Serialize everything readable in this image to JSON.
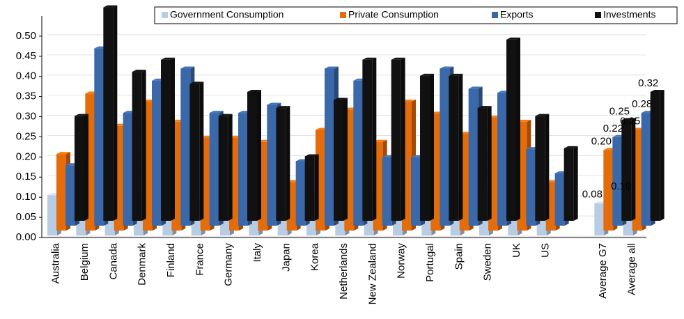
{
  "chart_data": {
    "type": "bar3d",
    "categories": [
      "Australia",
      "Belgium",
      "Canada",
      "Denmark",
      "Finland",
      "France",
      "Germany",
      "Italy",
      "Japan",
      "Korea",
      "Netherlands",
      "New Zealand",
      "Norway",
      "Portugal",
      "Spain",
      "Sweden",
      "UK",
      "US",
      null,
      "Average G7",
      "Average all"
    ],
    "series": [
      {
        "name": "Government Consumption",
        "color": "#b8cce4",
        "values": [
          0.1,
          0.12,
          0.1,
          0.1,
          0.12,
          0.09,
          0.09,
          0.07,
          0.06,
          0.1,
          0.11,
          0.1,
          0.11,
          0.09,
          0.11,
          0.11,
          0.12,
          0.06,
          null,
          0.08,
          0.1
        ],
        "value_labels": [
          null,
          null,
          null,
          null,
          null,
          null,
          null,
          null,
          null,
          null,
          null,
          null,
          null,
          null,
          null,
          null,
          null,
          null,
          null,
          "0.08",
          "0.10"
        ]
      },
      {
        "name": "Private Consumption",
        "color": "#e46c0a",
        "values": [
          0.19,
          0.34,
          0.26,
          0.32,
          0.27,
          0.23,
          0.23,
          0.22,
          0.12,
          0.25,
          0.3,
          0.22,
          0.32,
          0.29,
          0.24,
          0.28,
          0.27,
          0.12,
          null,
          0.2,
          0.25
        ],
        "value_labels": [
          null,
          null,
          null,
          null,
          null,
          null,
          null,
          null,
          null,
          null,
          null,
          null,
          null,
          null,
          null,
          null,
          null,
          null,
          null,
          "0.20",
          "0.25"
        ]
      },
      {
        "name": "Exports",
        "color": "#3a68a8",
        "values": [
          0.15,
          0.44,
          0.28,
          0.36,
          0.39,
          0.28,
          0.28,
          0.3,
          0.16,
          0.39,
          0.36,
          0.17,
          0.17,
          0.39,
          0.34,
          0.33,
          0.19,
          0.13,
          null,
          0.22,
          0.28
        ],
        "value_labels": [
          null,
          null,
          null,
          null,
          null,
          null,
          null,
          null,
          null,
          null,
          null,
          null,
          null,
          null,
          null,
          null,
          null,
          null,
          null,
          "0.22",
          "0.28"
        ]
      },
      {
        "name": "Investments",
        "color": "#111111",
        "values": [
          0.26,
          0.53,
          0.37,
          0.4,
          0.34,
          0.26,
          0.32,
          0.28,
          0.16,
          0.3,
          0.4,
          0.4,
          0.36,
          0.36,
          0.28,
          0.45,
          0.26,
          0.18,
          null,
          0.25,
          0.32
        ],
        "value_labels": [
          null,
          null,
          null,
          null,
          null,
          null,
          null,
          null,
          null,
          null,
          null,
          null,
          null,
          null,
          null,
          null,
          null,
          null,
          null,
          "0.25",
          "0.32"
        ]
      }
    ],
    "ylim": [
      0,
      0.55
    ],
    "yticks": [
      {
        "value": 0,
        "label": "0.00"
      },
      0.05,
      {
        "value": 0.1,
        "label": "0.10"
      },
      0.15,
      {
        "value": 0.2,
        "label": "0.20"
      },
      0.25,
      {
        "value": 0.3,
        "label": "0.30"
      },
      0.35,
      {
        "value": 0.4,
        "label": "0.40"
      },
      0.45,
      {
        "value": 0.5,
        "label": "0.50"
      }
    ],
    "grid": true,
    "legend": "top-right"
  }
}
